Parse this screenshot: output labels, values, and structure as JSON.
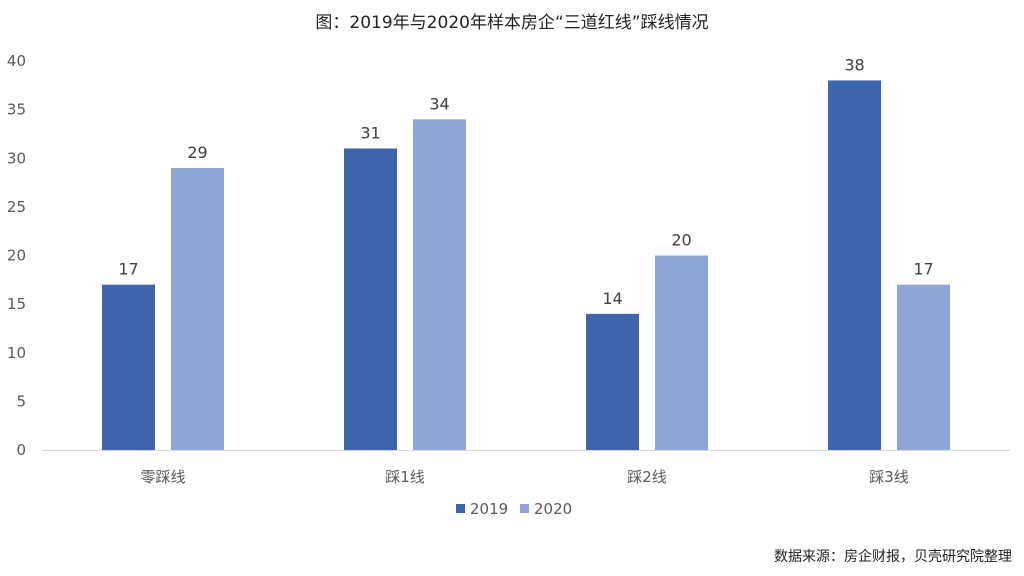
{
  "chart_data": {
    "type": "bar",
    "title": "图：2019年与2020年样本房企“三道红线”踩线情况",
    "categories": [
      "零踩线",
      "踩1线",
      "踩2线",
      "踩3线"
    ],
    "series": [
      {
        "name": "2019",
        "values": [
          17,
          31,
          14,
          38
        ],
        "color": "#3E64AC"
      },
      {
        "name": "2020",
        "values": [
          29,
          34,
          20,
          17
        ],
        "color": "#8FA5D5"
      }
    ],
    "xlabel": "",
    "ylabel": "",
    "ylim": [
      0,
      40
    ],
    "yticks": [
      0,
      5,
      10,
      15,
      20,
      25,
      30,
      35,
      40
    ],
    "grid": false,
    "legend": "bottom",
    "source": "数据来源：房企财报，贝壳研究院整理"
  }
}
